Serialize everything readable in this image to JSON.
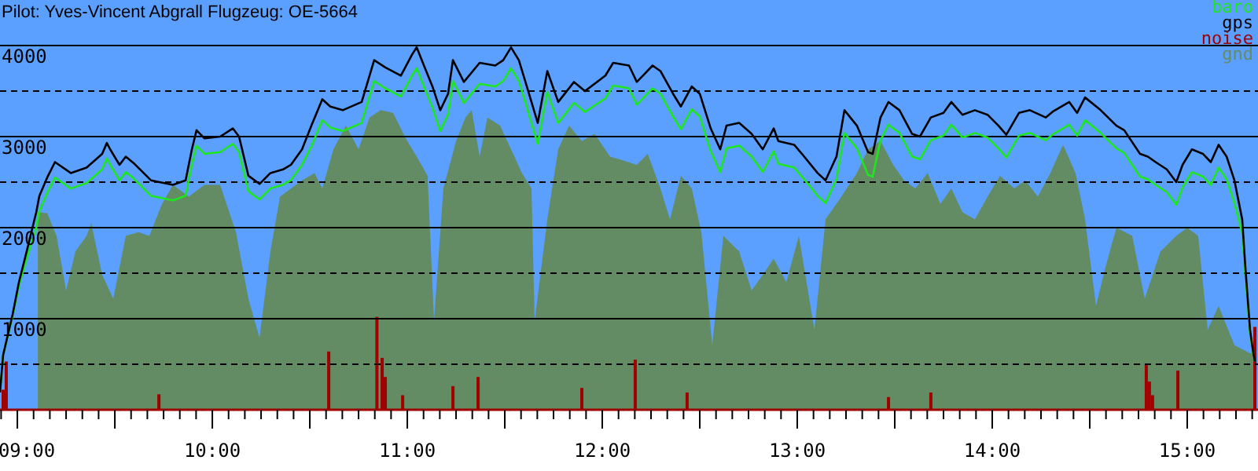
{
  "chart_data": {
    "type": "line",
    "title": "Pilot: Yves-Vincent Abgrall Flugzeug: OE-5664",
    "x": [
      8.911,
      8.927,
      8.976,
      9.008,
      9.048,
      9.097,
      9.113,
      9.153,
      9.193,
      9.274,
      9.355,
      9.435,
      9.459,
      9.476,
      9.524,
      9.556,
      9.596,
      9.685,
      9.798,
      9.863,
      9.895,
      9.919,
      9.96,
      10.04,
      10.105,
      10.137,
      10.185,
      10.242,
      10.298,
      10.363,
      10.403,
      10.46,
      10.508,
      10.564,
      10.605,
      10.669,
      10.766,
      10.83,
      10.887,
      10.967,
      11.024,
      11.048,
      11.089,
      11.129,
      11.169,
      11.209,
      11.234,
      11.29,
      11.371,
      11.451,
      11.492,
      11.532,
      11.572,
      11.613,
      11.669,
      11.718,
      11.774,
      11.855,
      11.911,
      12.016,
      12.056,
      12.137,
      12.177,
      12.218,
      12.258,
      12.298,
      12.363,
      12.403,
      12.459,
      12.5,
      12.556,
      12.605,
      12.637,
      12.702,
      12.766,
      12.823,
      12.879,
      12.903,
      12.984,
      13.024,
      13.104,
      13.145,
      13.201,
      13.242,
      13.306,
      13.363,
      13.387,
      13.427,
      13.468,
      13.524,
      13.589,
      13.629,
      13.685,
      13.75,
      13.79,
      13.847,
      13.911,
      13.976,
      14.032,
      14.072,
      14.137,
      14.193,
      14.274,
      14.314,
      14.395,
      14.435,
      14.476,
      14.556,
      14.637,
      14.677,
      14.758,
      14.798,
      14.838,
      14.895,
      14.944,
      14.976,
      15.024,
      15.081,
      15.121,
      15.161,
      15.202,
      15.242,
      15.282,
      15.298,
      15.322,
      15.339,
      15.347
    ],
    "series": [
      {
        "name": "gnd",
        "type": "area",
        "color": "#648c64",
        "x": [
          9.105,
          9.153,
          9.201,
          9.25,
          9.298,
          9.355,
          9.379,
          9.435,
          9.492,
          9.556,
          9.621,
          9.677,
          9.742,
          9.798,
          9.879,
          9.96,
          10.04,
          10.121,
          10.185,
          10.242,
          10.298,
          10.347,
          10.46,
          10.524,
          10.564,
          10.621,
          10.685,
          10.75,
          10.806,
          10.863,
          10.927,
          10.992,
          11.048,
          11.104,
          11.137,
          11.185,
          11.25,
          11.298,
          11.33,
          11.371,
          11.411,
          11.476,
          11.532,
          11.588,
          11.637,
          11.653,
          11.718,
          11.774,
          11.83,
          11.895,
          11.96,
          12.04,
          12.105,
          12.177,
          12.233,
          12.298,
          12.347,
          12.403,
          12.459,
          12.508,
          12.564,
          12.621,
          12.702,
          12.766,
          12.823,
          12.879,
          12.944,
          13.008,
          13.088,
          13.145,
          13.226,
          13.306,
          13.363,
          13.427,
          13.492,
          13.548,
          13.605,
          13.669,
          13.734,
          13.79,
          13.847,
          13.911,
          13.976,
          14.04,
          14.113,
          14.169,
          14.234,
          14.298,
          14.363,
          14.427,
          14.476,
          14.532,
          14.581,
          14.637,
          14.718,
          14.782,
          14.863,
          14.944,
          15.0,
          15.056,
          15.105,
          15.161,
          15.242,
          15.322,
          15.347
        ],
        "values": [
          2170,
          2160,
          1910,
          1310,
          1740,
          1910,
          2050,
          1480,
          1220,
          1910,
          1950,
          1910,
          2260,
          2470,
          2340,
          2470,
          2470,
          1950,
          1220,
          790,
          1740,
          2340,
          2520,
          2600,
          2430,
          2860,
          3120,
          2860,
          3210,
          3290,
          3260,
          2980,
          2780,
          2570,
          970,
          2430,
          2950,
          3210,
          3290,
          2780,
          3210,
          3120,
          2860,
          2600,
          2430,
          970,
          2090,
          2860,
          3120,
          2950,
          3030,
          2780,
          2740,
          2690,
          2810,
          2430,
          2090,
          2570,
          2430,
          1950,
          710,
          1910,
          1740,
          1310,
          1480,
          1660,
          1400,
          1910,
          880,
          2090,
          2340,
          2600,
          2860,
          2950,
          2690,
          2520,
          2430,
          2600,
          2260,
          2430,
          2170,
          2090,
          2340,
          2570,
          2430,
          2520,
          2340,
          2600,
          2910,
          2600,
          2090,
          1140,
          1570,
          2000,
          1910,
          1220,
          1740,
          1910,
          2000,
          1910,
          880,
          1140,
          710,
          620,
          620
        ]
      },
      {
        "name": "noise",
        "type": "bar",
        "color": "#a00000",
        "x": [
          8.927,
          8.943,
          9.726,
          10.597,
          10.844,
          10.871,
          10.887,
          10.976,
          11.234,
          11.363,
          11.895,
          12.169,
          12.435,
          13.468,
          13.685,
          14.79,
          14.806,
          14.822,
          14.952,
          15.347
        ],
        "values": [
          220,
          530,
          170,
          640,
          1020,
          570,
          360,
          160,
          260,
          360,
          240,
          550,
          190,
          140,
          190,
          500,
          310,
          160,
          430,
          910
        ]
      },
      {
        "name": "baro",
        "color": "#1ee61e",
        "values": [
          190,
          600,
          1030,
          1360,
          1660,
          2000,
          2180,
          2380,
          2550,
          2430,
          2490,
          2640,
          2760,
          2690,
          2520,
          2610,
          2540,
          2350,
          2300,
          2350,
          2690,
          2900,
          2810,
          2830,
          2920,
          2830,
          2400,
          2310,
          2430,
          2470,
          2520,
          2690,
          2890,
          3180,
          3100,
          3060,
          3150,
          3610,
          3530,
          3440,
          3670,
          3750,
          3530,
          3320,
          3060,
          3240,
          3610,
          3370,
          3580,
          3550,
          3610,
          3750,
          3610,
          3320,
          2920,
          3490,
          3150,
          3370,
          3270,
          3420,
          3560,
          3530,
          3350,
          3440,
          3530,
          3470,
          3220,
          3080,
          3300,
          3220,
          2840,
          2610,
          2870,
          2900,
          2780,
          2610,
          2840,
          2700,
          2660,
          2560,
          2350,
          2270,
          2530,
          3040,
          2870,
          2580,
          2560,
          2960,
          3130,
          3040,
          2780,
          2750,
          2960,
          3010,
          3130,
          2990,
          3040,
          2990,
          2870,
          2770,
          3010,
          3040,
          2960,
          3030,
          3130,
          3010,
          3180,
          3040,
          2870,
          2820,
          2560,
          2530,
          2470,
          2390,
          2250,
          2440,
          2610,
          2560,
          2470,
          2660,
          2530,
          2270,
          1940,
          1490,
          840,
          600,
          530
        ]
      },
      {
        "name": "gps",
        "color": "#000000",
        "values": [
          190,
          600,
          1050,
          1400,
          1740,
          2170,
          2350,
          2550,
          2720,
          2600,
          2660,
          2810,
          2930,
          2860,
          2690,
          2780,
          2710,
          2520,
          2470,
          2520,
          2860,
          3070,
          2980,
          3000,
          3090,
          3000,
          2570,
          2480,
          2600,
          2640,
          2690,
          2860,
          3120,
          3410,
          3330,
          3290,
          3380,
          3840,
          3760,
          3670,
          3900,
          3980,
          3760,
          3550,
          3290,
          3470,
          3840,
          3600,
          3810,
          3780,
          3840,
          3980,
          3840,
          3550,
          3150,
          3720,
          3380,
          3600,
          3500,
          3670,
          3810,
          3780,
          3600,
          3690,
          3780,
          3720,
          3470,
          3330,
          3550,
          3470,
          3090,
          2860,
          3120,
          3150,
          3030,
          2860,
          3090,
          2950,
          2910,
          2810,
          2600,
          2520,
          2780,
          3290,
          3120,
          2830,
          2810,
          3210,
          3380,
          3290,
          3030,
          3000,
          3210,
          3260,
          3380,
          3240,
          3290,
          3240,
          3120,
          3020,
          3260,
          3290,
          3210,
          3280,
          3380,
          3260,
          3430,
          3290,
          3120,
          3070,
          2810,
          2780,
          2720,
          2640,
          2500,
          2690,
          2860,
          2810,
          2720,
          2910,
          2780,
          2520,
          2090,
          1570,
          880,
          620,
          530
        ]
      }
    ],
    "xlim": [
      8.911,
      15.363
    ],
    "xticks": [
      {
        "value": 8.9167,
        "label": null
      },
      {
        "value": 9,
        "label": "09:00"
      },
      {
        "value": 9.0833,
        "label": null
      },
      {
        "value": 9.1667,
        "label": null
      },
      {
        "value": 9.25,
        "label": null
      },
      {
        "value": 9.3333,
        "label": null
      },
      {
        "value": 9.4167,
        "label": null
      },
      {
        "value": 9.5,
        "label": null
      },
      {
        "value": 9.5833,
        "label": null
      },
      {
        "value": 9.6667,
        "label": null
      },
      {
        "value": 9.75,
        "label": null
      },
      {
        "value": 9.8333,
        "label": null
      },
      {
        "value": 9.9167,
        "label": null
      },
      {
        "value": 10,
        "label": "10:00"
      },
      {
        "value": 10.0833,
        "label": null
      },
      {
        "value": 10.1667,
        "label": null
      },
      {
        "value": 10.25,
        "label": null
      },
      {
        "value": 10.3333,
        "label": null
      },
      {
        "value": 10.4167,
        "label": null
      },
      {
        "value": 10.5,
        "label": null
      },
      {
        "value": 10.5833,
        "label": null
      },
      {
        "value": 10.6667,
        "label": null
      },
      {
        "value": 10.75,
        "label": null
      },
      {
        "value": 10.8333,
        "label": null
      },
      {
        "value": 10.9167,
        "label": null
      },
      {
        "value": 11,
        "label": "11:00"
      },
      {
        "value": 11.0833,
        "label": null
      },
      {
        "value": 11.1667,
        "label": null
      },
      {
        "value": 11.25,
        "label": null
      },
      {
        "value": 11.3333,
        "label": null
      },
      {
        "value": 11.4167,
        "label": null
      },
      {
        "value": 11.5,
        "label": null
      },
      {
        "value": 11.5833,
        "label": null
      },
      {
        "value": 11.6667,
        "label": null
      },
      {
        "value": 11.75,
        "label": null
      },
      {
        "value": 11.8333,
        "label": null
      },
      {
        "value": 11.9167,
        "label": null
      },
      {
        "value": 12,
        "label": "12:00"
      },
      {
        "value": 12.0833,
        "label": null
      },
      {
        "value": 12.1667,
        "label": null
      },
      {
        "value": 12.25,
        "label": null
      },
      {
        "value": 12.3333,
        "label": null
      },
      {
        "value": 12.4167,
        "label": null
      },
      {
        "value": 12.5,
        "label": null
      },
      {
        "value": 12.5833,
        "label": null
      },
      {
        "value": 12.6667,
        "label": null
      },
      {
        "value": 12.75,
        "label": null
      },
      {
        "value": 12.8333,
        "label": null
      },
      {
        "value": 12.9167,
        "label": null
      },
      {
        "value": 13,
        "label": "13:00"
      },
      {
        "value": 13.0833,
        "label": null
      },
      {
        "value": 13.1667,
        "label": null
      },
      {
        "value": 13.25,
        "label": null
      },
      {
        "value": 13.3333,
        "label": null
      },
      {
        "value": 13.4167,
        "label": null
      },
      {
        "value": 13.5,
        "label": null
      },
      {
        "value": 13.5833,
        "label": null
      },
      {
        "value": 13.6667,
        "label": null
      },
      {
        "value": 13.75,
        "label": null
      },
      {
        "value": 13.8333,
        "label": null
      },
      {
        "value": 13.9167,
        "label": null
      },
      {
        "value": 14,
        "label": "14:00"
      },
      {
        "value": 14.0833,
        "label": null
      },
      {
        "value": 14.1667,
        "label": null
      },
      {
        "value": 14.25,
        "label": null
      },
      {
        "value": 14.3333,
        "label": null
      },
      {
        "value": 14.4167,
        "label": null
      },
      {
        "value": 14.5,
        "label": null
      },
      {
        "value": 14.5833,
        "label": null
      },
      {
        "value": 14.6667,
        "label": null
      },
      {
        "value": 14.75,
        "label": null
      },
      {
        "value": 14.8333,
        "label": null
      },
      {
        "value": 14.9167,
        "label": null
      },
      {
        "value": 15,
        "label": "15:00"
      },
      {
        "value": 15.0833,
        "label": null
      },
      {
        "value": 15.1667,
        "label": null
      },
      {
        "value": 15.25,
        "label": null
      },
      {
        "value": 15.3333,
        "label": null
      }
    ],
    "ylim": [
      0,
      4500
    ],
    "yticks": [
      {
        "value": 500,
        "label": null
      },
      1000,
      {
        "value": 1500,
        "label": null
      },
      2000,
      {
        "value": 2500,
        "label": null
      },
      3000,
      {
        "value": 3500,
        "label": null
      },
      4000
    ],
    "grid": "y",
    "legend": "top right"
  }
}
